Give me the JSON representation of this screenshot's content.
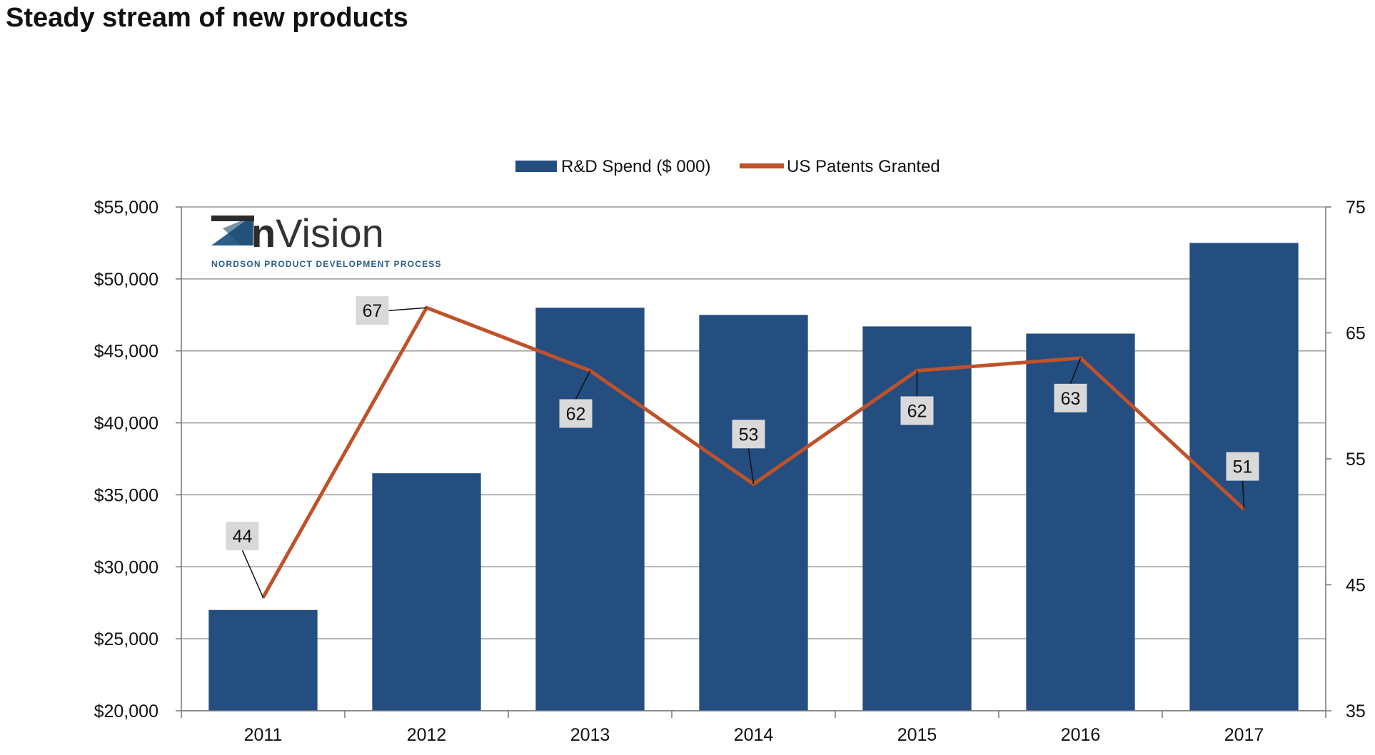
{
  "page": {
    "title": "Steady stream of new products"
  },
  "logo": {
    "name": "nVision",
    "tagline": "NORDSON PRODUCT DEVELOPMENT PROCESS"
  },
  "colors": {
    "bar": "#244d80",
    "line": "#c0522a",
    "grid": "#9a9a9a",
    "label_bg": "#d9d9d9"
  },
  "chart_data": {
    "type": "bar",
    "title": "Steady stream of new products",
    "categories": [
      "2011",
      "2012",
      "2013",
      "2014",
      "2015",
      "2016",
      "2017"
    ],
    "series": [
      {
        "name": "R&D Spend ($ 000)",
        "type": "bar",
        "axis": "left",
        "values": [
          27000,
          36500,
          48000,
          47500,
          46700,
          46200,
          52500
        ]
      },
      {
        "name": "US Patents Granted",
        "type": "line",
        "axis": "right",
        "values": [
          44,
          67,
          62,
          53,
          62,
          63,
          51
        ],
        "labels": [
          "44",
          "67",
          "62",
          "53",
          "62",
          "63",
          "51"
        ]
      }
    ],
    "y_left": {
      "min": 20000,
      "max": 55000,
      "ticks": [
        20000,
        25000,
        30000,
        35000,
        40000,
        45000,
        50000,
        55000
      ],
      "tick_labels": [
        "$20,000",
        "$25,000",
        "$30,000",
        "$35,000",
        "$40,000",
        "$45,000",
        "$50,000",
        "$55,000"
      ]
    },
    "y_right": {
      "min": 35,
      "max": 75,
      "ticks": [
        35,
        45,
        55,
        65,
        75
      ],
      "tick_labels": [
        "35",
        "45",
        "55",
        "65",
        "75"
      ]
    },
    "grid": true,
    "legend_position": "top-center"
  }
}
